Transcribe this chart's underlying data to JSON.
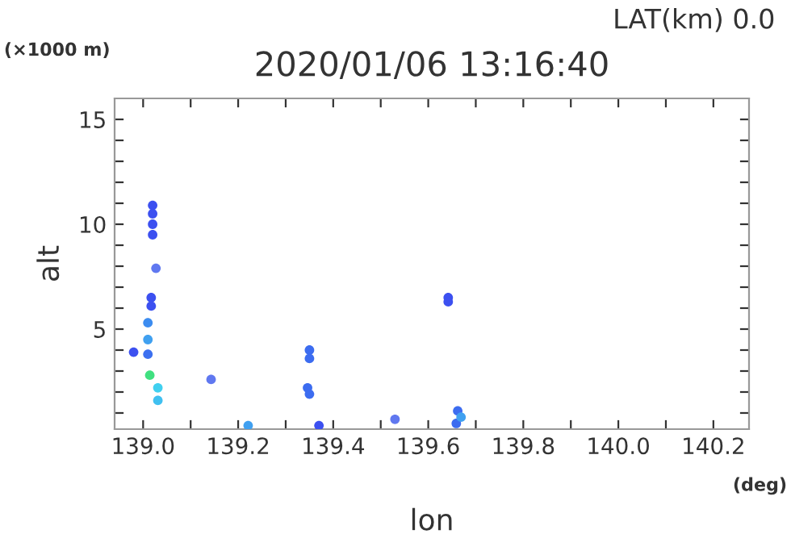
{
  "chart_data": {
    "type": "scatter",
    "title": "2020/01/06 13:16:40",
    "xlabel": "lon",
    "ylabel": "alt",
    "annotations": [
      "LAT(km) 0.0",
      "(×1000 m)",
      "(deg)"
    ],
    "marker": "circle",
    "grid": false,
    "xlim": [
      138.94,
      140.275
    ],
    "ylim": [
      0.23,
      16
    ],
    "xticks": [
      {
        "value": 139.0,
        "label": "139.0"
      },
      {
        "value": 139.1,
        "label": null
      },
      139.2,
      {
        "value": 139.3,
        "label": null
      },
      139.4,
      {
        "value": 139.5,
        "label": null
      },
      139.6,
      {
        "value": 139.7,
        "label": null
      },
      139.8,
      {
        "value": 139.9,
        "label": null
      },
      {
        "value": 140.0,
        "label": "140.0"
      },
      {
        "value": 140.1,
        "label": null
      },
      140.2
    ],
    "yticks": [
      {
        "value": 1,
        "label": null
      },
      {
        "value": 2,
        "label": null
      },
      {
        "value": 3,
        "label": null
      },
      {
        "value": 4,
        "label": null
      },
      5,
      {
        "value": 6,
        "label": null
      },
      {
        "value": 7,
        "label": null
      },
      {
        "value": 8,
        "label": null
      },
      {
        "value": 9,
        "label": null
      },
      10,
      {
        "value": 11,
        "label": null
      },
      {
        "value": 12,
        "label": null
      },
      {
        "value": 13,
        "label": null
      },
      {
        "value": 14,
        "label": null
      },
      15
    ],
    "series": [
      {
        "x": [
          139.02,
          139.02,
          139.02,
          139.02,
          139.027,
          139.017,
          139.017,
          139.01,
          139.01,
          139.01,
          138.98,
          139.014,
          139.031,
          139.031,
          139.143,
          139.221,
          139.35,
          139.35,
          139.346,
          139.35,
          139.642,
          139.642,
          139.662,
          139.659,
          139.669,
          139.53,
          139.37
        ],
        "values": [
          10.9,
          10.5,
          10.0,
          9.5,
          7.9,
          6.5,
          6.1,
          5.3,
          4.5,
          3.8,
          3.9,
          2.8,
          2.2,
          1.6,
          2.6,
          0.4,
          4.0,
          3.6,
          2.2,
          1.9,
          6.5,
          6.3,
          1.1,
          0.5,
          0.8,
          0.7,
          0.4
        ],
        "colors": [
          "#3c50f0",
          "#3c50f0",
          "#3c50f0",
          "#3c50f0",
          "#6078f0",
          "#3c50f0",
          "#3c50f0",
          "#3c8cf0",
          "#40a0f0",
          "#3c70f0",
          "#3c50f0",
          "#40e080",
          "#40d0f0",
          "#40c0f0",
          "#6078f0",
          "#40a0f0",
          "#3c6cf0",
          "#3c6cf0",
          "#3c6cf0",
          "#3c6cf0",
          "#3c50f0",
          "#3c50f0",
          "#3c6cf0",
          "#3c6cf0",
          "#40a0f0",
          "#6078f0",
          "#3c50f0"
        ]
      }
    ]
  }
}
